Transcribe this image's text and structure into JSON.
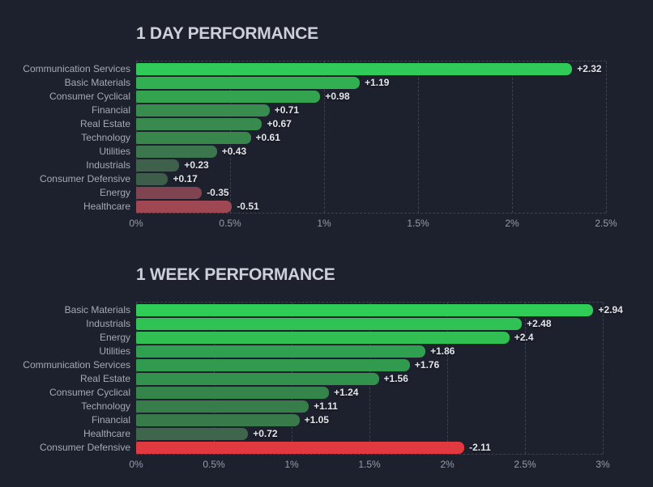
{
  "theme": {
    "background": "#1d212d",
    "title_color": "#cdd0d9",
    "label_color": "#a5a9b4",
    "value_color": "#e3e5ea",
    "tick_color": "#979caa",
    "grid_color": "#3c4250",
    "positive_max_color": "#2ecc58",
    "negative_max_color": "#e13940"
  },
  "chart_data": [
    {
      "type": "bar",
      "orientation": "horizontal",
      "title": "1 DAY PERFORMANCE",
      "xlabel": "",
      "ylabel": "",
      "xlim": [
        0,
        2.5
      ],
      "xticks": [
        "0%",
        "0.5%",
        "1%",
        "1.5%",
        "2%",
        "2.5%"
      ],
      "grid": "dashed-vertical",
      "negative_display": "absolute-length-red",
      "categories": [
        "Communication Services",
        "Basic Materials",
        "Consumer Cyclical",
        "Financial",
        "Real Estate",
        "Technology",
        "Utilities",
        "Industrials",
        "Consumer Defensive",
        "Energy",
        "Healthcare"
      ],
      "values": [
        2.32,
        1.19,
        0.98,
        0.71,
        0.67,
        0.61,
        0.43,
        0.23,
        0.17,
        -0.35,
        -0.51
      ],
      "value_labels": [
        "+2.32",
        "+1.19",
        "+0.98",
        "+0.71",
        "+0.67",
        "+0.61",
        "+0.43",
        "+0.23",
        "+0.17",
        "-0.35",
        "-0.51"
      ],
      "bar_colors": [
        "#2fca58",
        "#31af51",
        "#34a350",
        "#388d4e",
        "#398a4e",
        "#39864d",
        "#3c764c",
        "#3f614c",
        "#3f5d4b",
        "#7f4450",
        "#9f4752"
      ],
      "textured": [
        false,
        false,
        false,
        false,
        false,
        false,
        false,
        true,
        true,
        false,
        false
      ]
    },
    {
      "type": "bar",
      "orientation": "horizontal",
      "title": "1 WEEK PERFORMANCE",
      "xlabel": "",
      "ylabel": "",
      "xlim": [
        0,
        3
      ],
      "xticks": [
        "0%",
        "0.5%",
        "1%",
        "1.5%",
        "2%",
        "2.5%",
        "3%"
      ],
      "grid": "dashed-vertical",
      "negative_display": "absolute-length-red",
      "categories": [
        "Basic Materials",
        "Industrials",
        "Energy",
        "Utilities",
        "Communication Services",
        "Real Estate",
        "Consumer Cyclical",
        "Technology",
        "Financial",
        "Healthcare",
        "Consumer Defensive"
      ],
      "values": [
        2.94,
        2.48,
        2.4,
        1.86,
        1.76,
        1.56,
        1.24,
        1.11,
        1.05,
        0.72,
        -2.11
      ],
      "value_labels": [
        "+2.94",
        "+2.48",
        "+2.4",
        "+1.86",
        "+1.76",
        "+1.56",
        "+1.24",
        "+1.11",
        "+1.05",
        "+0.72",
        "-2.11"
      ],
      "bar_colors": [
        "#2fcd58",
        "#30c254",
        "#31bf53",
        "#2fa04f",
        "#309b4e",
        "#32914c",
        "#35844b",
        "#377d4a",
        "#387a4a",
        "#3d664a",
        "#e13940"
      ],
      "textured": [
        false,
        false,
        false,
        false,
        false,
        false,
        false,
        false,
        false,
        false,
        false
      ]
    }
  ]
}
